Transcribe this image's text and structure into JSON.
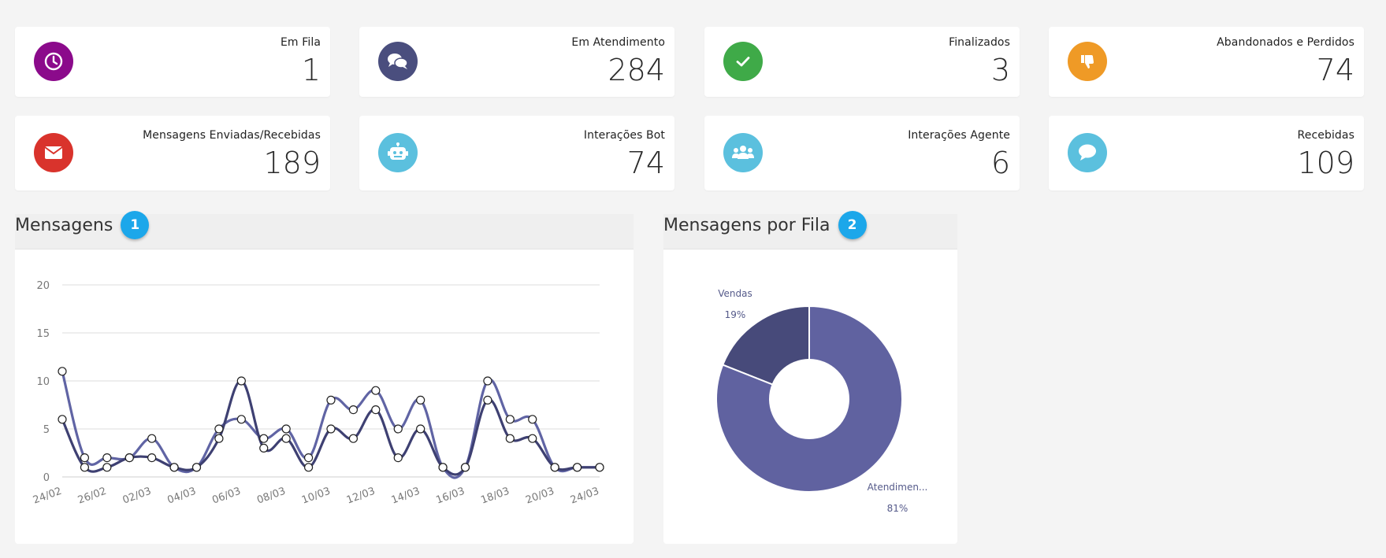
{
  "colors": {
    "purple": "#8b0a8b",
    "navy": "#4a4e7e",
    "green": "#3faa48",
    "orange": "#ef9a26",
    "red": "#d9332c",
    "cyan": "#5bc0de",
    "series_light": "#6064a4",
    "series_dark": "#3e4072",
    "pie_main": "#6062a0",
    "pie_secondary": "#474a7a"
  },
  "stats_row1": [
    {
      "label": "Em Fila",
      "value": "1",
      "icon": "clock-icon"
    },
    {
      "label": "Em Atendimento",
      "value": "284",
      "icon": "chat-bubbles-icon"
    },
    {
      "label": "Finalizados",
      "value": "3",
      "icon": "check-icon"
    },
    {
      "label": "Abandonados e Perdidos",
      "value": "74",
      "icon": "thumbs-down-icon"
    }
  ],
  "stats_row2": [
    {
      "label": "Mensagens Enviadas/Recebidas",
      "value": "189",
      "icon": "envelope-icon"
    },
    {
      "label": "Interações Bot",
      "value": "74",
      "icon": "robot-icon"
    },
    {
      "label": "Interações Agente",
      "value": "6",
      "icon": "users-icon"
    },
    {
      "label": "Recebidas",
      "value": "109",
      "icon": "comment-icon"
    }
  ],
  "sections": {
    "mensagens": {
      "title": "Mensagens",
      "badge": "1"
    },
    "por_fila": {
      "title": "Mensagens por Fila",
      "badge": "2"
    }
  },
  "chart_data": [
    {
      "type": "line",
      "ylim": [
        0,
        20
      ],
      "yticks": [
        0,
        5,
        10,
        15,
        20
      ],
      "x_labels": [
        "24/02",
        "26/02",
        "02/03",
        "04/03",
        "06/03",
        "08/03",
        "10/03",
        "12/03",
        "14/03",
        "16/03",
        "18/03",
        "20/03",
        "24/03"
      ],
      "series": [
        {
          "values": [
            11,
            2,
            2,
            2,
            4,
            1,
            1,
            5,
            6,
            4,
            5,
            2,
            8,
            7,
            9,
            5,
            8,
            1,
            1,
            10,
            6,
            6,
            1,
            1,
            1
          ]
        },
        {
          "values": [
            6,
            1,
            1,
            2,
            2,
            1,
            1,
            4,
            10,
            3,
            4,
            1,
            5,
            4,
            7,
            2,
            5,
            1,
            1,
            8,
            4,
            4,
            1,
            1,
            1
          ]
        }
      ]
    },
    {
      "type": "pie",
      "donut": true,
      "slices": [
        {
          "label": "Vendas",
          "value": 19,
          "display": "19%"
        },
        {
          "label": "Atendimen...",
          "value": 81,
          "display": "81%"
        }
      ]
    }
  ]
}
